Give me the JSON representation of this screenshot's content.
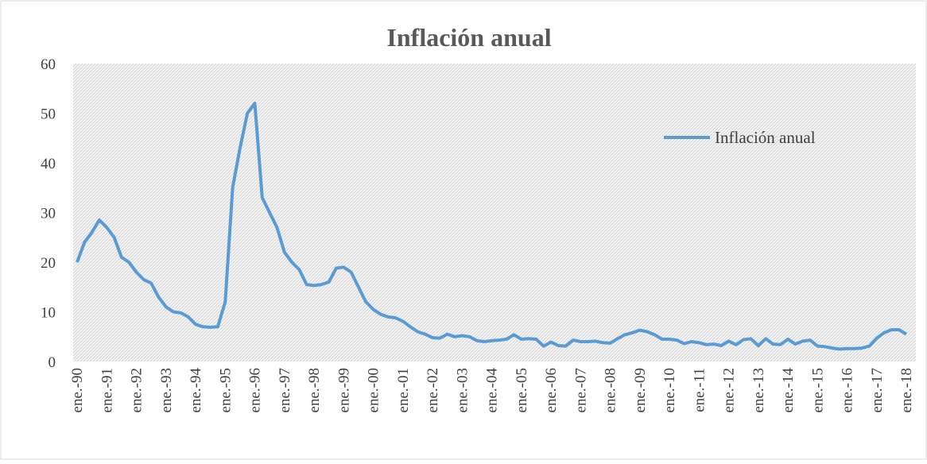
{
  "chart_data": {
    "type": "line",
    "title": "Inflación anual",
    "categories": [
      "ene.-90",
      null,
      null,
      null,
      "ene.-91",
      null,
      null,
      null,
      "ene.-92",
      null,
      null,
      null,
      "ene.-93",
      null,
      null,
      null,
      "ene.-94",
      null,
      null,
      null,
      "ene.-95",
      null,
      null,
      null,
      "ene.-96",
      null,
      null,
      null,
      "ene.-97",
      null,
      null,
      null,
      "ene.-98",
      null,
      null,
      null,
      "ene.-99",
      null,
      null,
      null,
      "ene.-00",
      null,
      null,
      null,
      "ene.-01",
      null,
      null,
      null,
      "ene.-02",
      null,
      null,
      null,
      "ene.-03",
      null,
      null,
      null,
      "ene.-04",
      null,
      null,
      null,
      "ene.-05",
      null,
      null,
      null,
      "ene.-06",
      null,
      null,
      null,
      "ene.-07",
      null,
      null,
      null,
      "ene.-08",
      null,
      null,
      null,
      "ene.-09",
      null,
      null,
      null,
      "ene.-10",
      null,
      null,
      null,
      "ene.-11",
      null,
      null,
      null,
      "ene.-12",
      null,
      null,
      null,
      "ene.-13",
      null,
      null,
      null,
      "ene.-14",
      null,
      null,
      null,
      "ene.-15",
      null,
      null,
      null,
      "ene.-16",
      null,
      null,
      null,
      "ene.-17",
      null,
      null,
      null,
      "ene.-18"
    ],
    "series": [
      {
        "name": "Inflación anual",
        "color": "#5b9bd5",
        "values": [
          20,
          24,
          26,
          28.5,
          27,
          25,
          21,
          20,
          18,
          16.5,
          15.8,
          13,
          11,
          10,
          9.8,
          9,
          7.5,
          7,
          6.9,
          7,
          12,
          35,
          43,
          50,
          52,
          33,
          30,
          27,
          22,
          20,
          18.5,
          15.5,
          15.3,
          15.5,
          16,
          18.8,
          19,
          18,
          15,
          12,
          10.5,
          9.5,
          9,
          8.8,
          8.1,
          7,
          6,
          5.5,
          4.8,
          4.7,
          5.5,
          5,
          5.2,
          5,
          4.2,
          4,
          4.2,
          4.3,
          4.5,
          5.4,
          4.5,
          4.6,
          4.5,
          3.1,
          3.9,
          3.2,
          3.1,
          4.3,
          4,
          4,
          4.1,
          3.8,
          3.7,
          4.6,
          5.4,
          5.8,
          6.3,
          6,
          5.4,
          4.5,
          4.5,
          4.3,
          3.6,
          4,
          3.8,
          3.4,
          3.5,
          3.2,
          4.1,
          3.4,
          4.4,
          4.6,
          3.2,
          4.6,
          3.5,
          3.4,
          4.5,
          3.5,
          4.1,
          4.3,
          3.1,
          3,
          2.7,
          2.5,
          2.6,
          2.6,
          2.7,
          3.1,
          4.7,
          5.8,
          6.4,
          6.4,
          5.5
        ]
      }
    ],
    "ylim": [
      0,
      60
    ],
    "yticks": [
      0,
      10,
      20,
      30,
      40,
      50,
      60
    ],
    "grid": false
  }
}
